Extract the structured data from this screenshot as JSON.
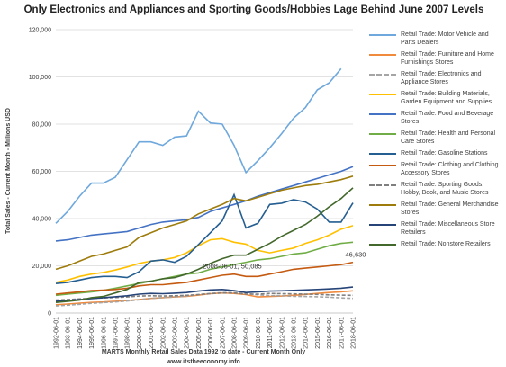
{
  "chart_data": {
    "type": "line",
    "title": "Only Electronics and Appliances and Sporting Goods/Hobbies Lage Behind June 2007 Levels",
    "y_label": "Total Sales - Current Month - Millions USD",
    "x_label": "MARTS Monthly Retail Sales Data 1992 to date - Current Month Only",
    "footer": "www.itstheeconomy.info",
    "annotations": [
      {
        "text": "2008-06-01, 50,085",
        "series": 7,
        "index": 15
      },
      {
        "text": "46,630",
        "series": 7,
        "index": 25
      }
    ],
    "categories": [
      "1992-06-01",
      "1993-06-01",
      "1994-06-01",
      "1995-06-01",
      "1996-06-01",
      "1997-06-01",
      "1998-06-01",
      "2000-06-01",
      "2001-06-01",
      "2002-06-01",
      "2003-06-01",
      "2004-06-01",
      "2005-06-01",
      "2006-06-01",
      "2007-06-01",
      "2008-06-01",
      "2009-06-01",
      "2010-06-01",
      "2011-06-01",
      "2012-06-01",
      "2013-06-01",
      "2014-06-01",
      "2015-06-01",
      "2016-06-01",
      "2017-06-01",
      "2018-06-01"
    ],
    "ylim": [
      0,
      120000
    ],
    "yticks": [
      0,
      {
        "value": 20000,
        "label": "20,000"
      },
      {
        "value": 40000,
        "label": "40,000"
      },
      {
        "value": 60000,
        "label": "60,000"
      },
      {
        "value": 80000,
        "label": "80,000"
      },
      {
        "value": 100000,
        "label": "100,000"
      },
      {
        "value": 120000,
        "label": "120,000"
      }
    ],
    "grid": true,
    "series": [
      {
        "name": "Retail Trade: Motor Vehicle and Parts Dealers",
        "color": "#6fa8dc",
        "dashed": false,
        "values": [
          38000,
          43000,
          49500,
          55000,
          55000,
          57500,
          65000,
          72500,
          72500,
          71000,
          74500,
          75000,
          85500,
          80500,
          80000,
          71000,
          59500,
          64500,
          70000,
          76000,
          82500,
          87000,
          94500,
          97500,
          103500,
          null
        ]
      },
      {
        "name": "Retail Trade: Furniture and Home Furnishings Stores",
        "color": "#f08a3c",
        "dashed": false,
        "values": [
          3500,
          3800,
          4200,
          4500,
          4700,
          5000,
          5300,
          5700,
          6200,
          6500,
          6800,
          7100,
          7600,
          8200,
          8500,
          8300,
          7800,
          6800,
          7000,
          7200,
          7500,
          7900,
          8300,
          8700,
          9000,
          9400
        ]
      },
      {
        "name": "Retail Trade: Electronics and Appliance Stores",
        "color": "#a5a5a5",
        "dashed": true,
        "values": [
          3000,
          3300,
          3700,
          4100,
          4400,
          4700,
          5100,
          5600,
          6200,
          6500,
          6800,
          7200,
          7800,
          8300,
          8600,
          8700,
          8300,
          7700,
          7400,
          7300,
          7100,
          7000,
          6900,
          6700,
          6400,
          6200
        ]
      },
      {
        "name": "Retail Trade: Building Materials, Garden Equipment and Supplies",
        "color": "#ffc000",
        "dashed": false,
        "values": [
          13000,
          14000,
          15500,
          16500,
          17200,
          18200,
          19500,
          21000,
          22000,
          22500,
          23500,
          25500,
          28500,
          31000,
          31500,
          30000,
          29200,
          26500,
          25500,
          26500,
          27500,
          29500,
          31000,
          33000,
          35500,
          37000
        ]
      },
      {
        "name": "Retail Trade: Food and Beverage Stores",
        "color": "#4472c4",
        "dashed": false,
        "values": [
          30500,
          31000,
          32000,
          33000,
          33500,
          34000,
          34500,
          36000,
          37500,
          38500,
          39000,
          39500,
          40500,
          43000,
          44500,
          46000,
          47500,
          49500,
          51000,
          52500,
          54000,
          55500,
          57000,
          58500,
          60000,
          62000
        ]
      },
      {
        "name": "Retail Trade: Health and Personal Care Stores",
        "color": "#70ad47",
        "dashed": false,
        "values": [
          7500,
          8000,
          8500,
          9000,
          9600,
          10500,
          11500,
          12500,
          13500,
          14500,
          15500,
          16500,
          17000,
          18500,
          19500,
          20500,
          21500,
          22500,
          23000,
          24000,
          25000,
          25500,
          27000,
          28500,
          29500,
          30000
        ]
      },
      {
        "name": "Retail Trade: Gasoline Stations",
        "color": "#255e91",
        "dashed": false,
        "values": [
          12500,
          13000,
          14000,
          15000,
          15500,
          15500,
          15000,
          17500,
          22000,
          22500,
          21500,
          24000,
          29000,
          34000,
          39000,
          50085,
          36000,
          38000,
          46000,
          46500,
          48000,
          47000,
          44000,
          38500,
          38500,
          46630
        ]
      },
      {
        "name": "Retail Trade: Clothing and Clothing Accessory Stores",
        "color": "#c55a11",
        "dashed": false,
        "values": [
          8000,
          8500,
          9000,
          9500,
          9700,
          10000,
          10500,
          11500,
          12000,
          12000,
          12500,
          13000,
          14000,
          15000,
          16000,
          16500,
          15500,
          15500,
          16500,
          17500,
          18500,
          19000,
          19500,
          20000,
          20500,
          21500
        ]
      },
      {
        "name": "Retail Trade: Sporting Goods, Hobby, Book, and Music Stores",
        "color": "#7f7f7f",
        "dashed": true,
        "values": [
          5500,
          5700,
          6000,
          6200,
          6400,
          6600,
          6800,
          7200,
          7300,
          7200,
          7300,
          7500,
          7800,
          8200,
          8500,
          8500,
          8000,
          8000,
          8300,
          8200,
          8100,
          8000,
          7900,
          7700,
          7600,
          7500
        ]
      },
      {
        "name": "Retail Trade: General Merchandise Stores",
        "color": "#9e7c0c",
        "dashed": false,
        "values": [
          18500,
          20000,
          22000,
          24000,
          25000,
          26500,
          28000,
          32000,
          34000,
          36000,
          37500,
          39000,
          42000,
          44000,
          46000,
          48500,
          47500,
          49000,
          50500,
          52000,
          53000,
          54000,
          54500,
          55500,
          56500,
          58000
        ]
      },
      {
        "name": "Retail Trade: Miscellaneous Store Retailers",
        "color": "#264478",
        "dashed": false,
        "values": [
          5000,
          5300,
          5700,
          6100,
          6500,
          6900,
          7300,
          8000,
          8300,
          8200,
          8400,
          8700,
          9300,
          9800,
          10000,
          9500,
          8700,
          9000,
          9300,
          9400,
          9600,
          9800,
          10000,
          10200,
          10500,
          11000
        ]
      },
      {
        "name": "Retail Trade: Nonstore Retailers",
        "color": "#43682b",
        "dashed": false,
        "values": [
          4500,
          5000,
          5500,
          6500,
          7000,
          8500,
          10000,
          13000,
          13500,
          14500,
          15000,
          16500,
          18500,
          21000,
          23000,
          24500,
          24500,
          27000,
          29500,
          32500,
          35000,
          37500,
          41000,
          45000,
          48500,
          53000
        ]
      }
    ]
  }
}
